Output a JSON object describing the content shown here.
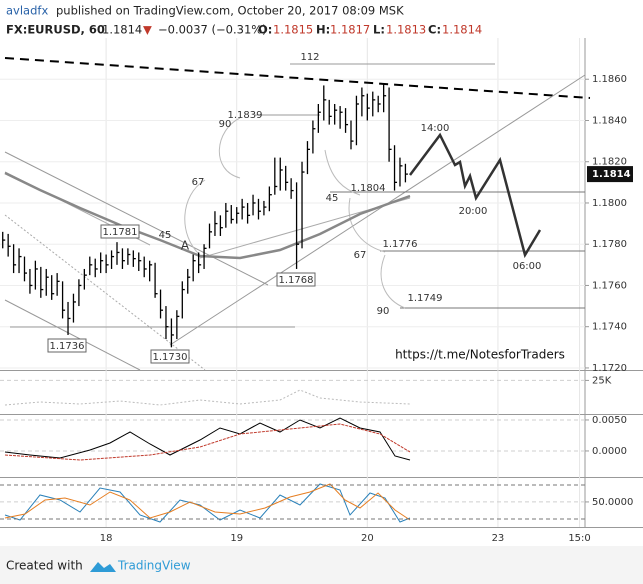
{
  "header": {
    "publisher": "avladfx",
    "published": "published on TradingView.com, October 20, 2017 08:09 MSK",
    "symbol": "FX:EURUSD, 60",
    "last": "1.1814",
    "arrow": "▼",
    "change": "−0.0037 (−0.31%)",
    "o_label": "O:",
    "open": "1.1815",
    "h_label": "H:",
    "high": "1.1817",
    "l_label": "L:",
    "low": "1.1813",
    "c_label": "C:",
    "close": "1.1814"
  },
  "chart_data": [
    {
      "type": "ohlc",
      "color": "#000000",
      "x": [
        5,
        6,
        7,
        8,
        9,
        10,
        11,
        12,
        13,
        14,
        15,
        16,
        17,
        18,
        19,
        20,
        21,
        22,
        23,
        24,
        25,
        26,
        27,
        28,
        29,
        30,
        31,
        32,
        33,
        34,
        35,
        36,
        37,
        38,
        39,
        40,
        41,
        42,
        43,
        44,
        45,
        46,
        47,
        48,
        49,
        50,
        51,
        52,
        53,
        54,
        55,
        56,
        57,
        58,
        59,
        60,
        61,
        62,
        63,
        64,
        65,
        66,
        67,
        68,
        69,
        70,
        71,
        72,
        73,
        74,
        75,
        76,
        77,
        78,
        79
      ],
      "high": [
        1.1786,
        1.1785,
        1.178,
        1.1778,
        1.1774,
        1.1768,
        1.1772,
        1.1769,
        1.1768,
        1.1765,
        1.1766,
        1.1762,
        1.1752,
        1.1756,
        1.1763,
        1.1768,
        1.1774,
        1.1773,
        1.1776,
        1.1775,
        1.1777,
        1.1781,
        1.1778,
        1.1778,
        1.1777,
        1.1776,
        1.1774,
        1.1772,
        1.1771,
        1.1758,
        1.175,
        1.1744,
        1.1748,
        1.1762,
        1.1768,
        1.1775,
        1.1776,
        1.178,
        1.179,
        1.1796,
        1.1794,
        1.18,
        1.1799,
        1.1798,
        1.1802,
        1.18,
        1.1804,
        1.1802,
        1.1801,
        1.1808,
        1.1822,
        1.1822,
        1.1818,
        1.1812,
        1.181,
        1.182,
        1.183,
        1.184,
        1.1848,
        1.1857,
        1.185,
        1.1848,
        1.1847,
        1.1846,
        1.184,
        1.1852,
        1.1856,
        1.1853,
        1.1854,
        1.1852,
        1.1858,
        1.1856,
        1.1828,
        1.1822,
        1.1819
      ],
      "low": [
        1.1778,
        1.1774,
        1.1766,
        1.1766,
        1.1762,
        1.1756,
        1.1758,
        1.1754,
        1.1755,
        1.1753,
        1.1755,
        1.1744,
        1.1736,
        1.1742,
        1.175,
        1.1758,
        1.1765,
        1.1764,
        1.1766,
        1.1766,
        1.1768,
        1.177,
        1.1768,
        1.177,
        1.1769,
        1.1767,
        1.1764,
        1.1762,
        1.1754,
        1.1744,
        1.1734,
        1.173,
        1.1734,
        1.1744,
        1.1756,
        1.1762,
        1.1766,
        1.1768,
        1.1778,
        1.1784,
        1.1784,
        1.1788,
        1.179,
        1.179,
        1.1792,
        1.179,
        1.1794,
        1.1792,
        1.1794,
        1.1796,
        1.1804,
        1.1806,
        1.1806,
        1.1802,
        1.1768,
        1.1778,
        1.1814,
        1.1824,
        1.1834,
        1.184,
        1.1838,
        1.1838,
        1.1836,
        1.1834,
        1.1826,
        1.1828,
        1.1842,
        1.184,
        1.1842,
        1.1844,
        1.1844,
        1.182,
        1.1806,
        1.1808,
        1.181
      ],
      "close": [
        1.1782,
        1.1779,
        1.177,
        1.1774,
        1.1766,
        1.176,
        1.1768,
        1.1758,
        1.1764,
        1.1756,
        1.1762,
        1.1748,
        1.1744,
        1.1752,
        1.176,
        1.1765,
        1.177,
        1.1768,
        1.1772,
        1.177,
        1.1774,
        1.1776,
        1.1772,
        1.1775,
        1.1773,
        1.1772,
        1.1768,
        1.177,
        1.1756,
        1.1748,
        1.174,
        1.1736,
        1.1745,
        1.1758,
        1.1764,
        1.1772,
        1.177,
        1.1778,
        1.1786,
        1.179,
        1.1788,
        1.1796,
        1.1792,
        1.1795,
        1.1798,
        1.1794,
        1.18,
        1.1796,
        1.1798,
        1.1804,
        1.1808,
        1.1816,
        1.181,
        1.1806,
        1.178,
        1.1815,
        1.1826,
        1.1836,
        1.1844,
        1.185,
        1.1842,
        1.1845,
        1.1844,
        1.1838,
        1.183,
        1.1848,
        1.1852,
        1.1846,
        1.185,
        1.1848,
        1.1852,
        1.1826,
        1.181,
        1.1818,
        1.1814
      ],
      "xlim": [
        4.5,
        112
      ],
      "ylim": [
        1.1719,
        1.188
      ],
      "xticks": [
        {
          "value": 24,
          "label": "18"
        },
        {
          "value": 48,
          "label": "19"
        },
        {
          "value": 72,
          "label": "20"
        },
        {
          "value": 96,
          "label": "23"
        },
        {
          "value": 111,
          "label": "15:0"
        }
      ],
      "yticks": [
        {
          "value": 1.172,
          "label": "1.1720"
        },
        {
          "value": 1.174,
          "label": "1.1740"
        },
        {
          "value": 1.176,
          "label": "1.1760"
        },
        {
          "value": 1.178,
          "label": "1.1780"
        },
        {
          "value": 1.18,
          "label": "1.1800"
        },
        {
          "value": 1.182,
          "label": "1.1820"
        },
        {
          "value": 1.184,
          "label": "1.1840"
        },
        {
          "value": 1.186,
          "label": "1.1860"
        }
      ],
      "last_price": {
        "value": 1.1814,
        "label": "1.1814"
      },
      "annotations": [
        "112",
        "90",
        "1.1839",
        "67",
        "45",
        "A",
        "1.1781",
        "1.1736",
        "1.1730",
        "1.1768",
        "45",
        "1.1804",
        "67",
        "1.1776",
        "90",
        "1.1749",
        "14:00",
        "20:00",
        "06:00",
        "https://t.me/NotesforTraders"
      ]
    },
    {
      "type": "volume",
      "ylim": [
        0,
        32000
      ],
      "yticks": [
        {
          "value": 25000,
          "label": "25K"
        }
      ]
    },
    {
      "type": "macd",
      "ylim": [
        -0.0042,
        0.0058
      ],
      "yticks": [
        {
          "value": 0.005,
          "label": "0.0050"
        },
        {
          "value": 0,
          "label": "0.0000"
        }
      ]
    },
    {
      "type": "stochastic",
      "ylim": [
        6,
        92
      ],
      "yticks": [
        {
          "value": 50,
          "label": "50.0000"
        }
      ]
    }
  ],
  "footer": {
    "created": "Created with",
    "brand": "TradingView"
  }
}
